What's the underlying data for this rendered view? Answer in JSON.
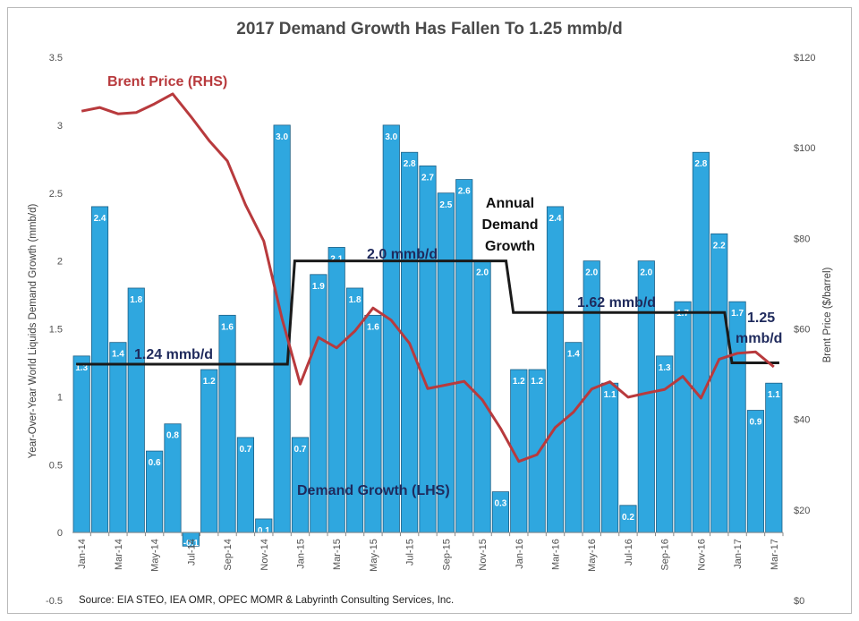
{
  "chart_data": {
    "type": "bar",
    "title": "2017 Demand Growth Has Fallen To 1.25 mmb/d",
    "ylabel": "Year-Over-Year World Liquids Demand Growth (mmb/d)",
    "y2label": "Brent Price ($/barrel)",
    "ylim": [
      -0.5,
      3.5
    ],
    "y2lim": [
      0,
      120
    ],
    "y_ticks": [
      "-0.5",
      "0",
      "0.5",
      "1",
      "1.5",
      "2",
      "2.5",
      "3",
      "3.5"
    ],
    "y2_ticks": [
      "$0",
      "$20",
      "$40",
      "$60",
      "$80",
      "$100",
      "$120"
    ],
    "categories": [
      "Jan-14",
      "Feb-14",
      "Mar-14",
      "Apr-14",
      "May-14",
      "Jun-14",
      "Jul-14",
      "Aug-14",
      "Sep-14",
      "Oct-14",
      "Nov-14",
      "Dec-14",
      "Jan-15",
      "Feb-15",
      "Mar-15",
      "Apr-15",
      "May-15",
      "Jun-15",
      "Jul-15",
      "Aug-15",
      "Sep-15",
      "Oct-15",
      "Nov-15",
      "Dec-15",
      "Jan-16",
      "Feb-16",
      "Mar-16",
      "Apr-16",
      "May-16",
      "Jun-16",
      "Jul-16",
      "Aug-16",
      "Sep-16",
      "Oct-16",
      "Nov-16",
      "Dec-16",
      "Jan-17",
      "Feb-17",
      "Mar-17"
    ],
    "x_tick_labels": [
      "Jan-14",
      "",
      "Mar-14",
      "",
      "May-14",
      "",
      "Jul-14",
      "",
      "Sep-14",
      "",
      "Nov-14",
      "",
      "Jan-15",
      "",
      "Mar-15",
      "",
      "May-15",
      "",
      "Jul-15",
      "",
      "Sep-15",
      "",
      "Nov-15",
      "",
      "Jan-16",
      "",
      "Mar-16",
      "",
      "May-16",
      "",
      "Jul-16",
      "",
      "Sep-16",
      "",
      "Nov-16",
      "",
      "Jan-17",
      "",
      "Mar-17"
    ],
    "series": [
      {
        "name": "Demand Growth (LHS)",
        "axis": "left",
        "type": "bar",
        "color": "#2fa7df",
        "values": [
          1.3,
          2.4,
          1.4,
          1.8,
          0.6,
          0.8,
          -0.1,
          1.2,
          1.6,
          0.7,
          0.1,
          3.0,
          0.7,
          1.9,
          2.1,
          1.8,
          1.6,
          3.0,
          2.8,
          2.7,
          2.5,
          2.6,
          2.0,
          0.3,
          1.2,
          1.2,
          2.4,
          1.4,
          2.0,
          1.1,
          0.2,
          2.0,
          1.3,
          1.7,
          2.8,
          2.2,
          1.7,
          0.9,
          1.1
        ],
        "labels": [
          "1.3",
          "2.4",
          "1.4",
          "1.8",
          "0.6",
          "0.8",
          "-0.1",
          "1.2",
          "1.6",
          "0.7",
          "0.1",
          "3.0",
          "0.7",
          "1.9",
          "2.1",
          "1.8",
          "1.6",
          "3.0",
          "2.8",
          "2.7",
          "2.5",
          "2.6",
          "2.0",
          "0.3",
          "1.2",
          "1.2",
          "2.4",
          "1.4",
          "2.0",
          "1.1",
          "0.2",
          "2.0",
          "1.3",
          "1.7",
          "2.8",
          "2.2",
          "1.7",
          "0.9",
          "1.1"
        ]
      },
      {
        "name": "Brent Price (RHS)",
        "axis": "right",
        "type": "line",
        "color": "#b83a3d",
        "values": [
          108.1,
          108.9,
          107.5,
          107.8,
          109.7,
          111.9,
          106.9,
          101.6,
          97.1,
          87.4,
          79.4,
          62.3,
          47.8,
          58.1,
          55.8,
          59.5,
          64.6,
          61.9,
          56.8,
          46.8,
          47.6,
          48.4,
          44.3,
          38.0,
          30.7,
          32.2,
          38.2,
          41.6,
          46.7,
          48.3,
          44.9,
          45.8,
          46.6,
          49.5,
          44.7,
          53.3,
          54.6,
          54.9,
          51.6
        ]
      },
      {
        "name": "Annual Demand Growth",
        "axis": "left",
        "type": "step",
        "color": "#1a1a1a",
        "segments": [
          {
            "from": 0,
            "to": 11,
            "value": 1.24,
            "label": "1.24 mmb/d"
          },
          {
            "from": 12,
            "to": 23,
            "value": 2.0,
            "label": "2.0 mmb/d"
          },
          {
            "from": 24,
            "to": 35,
            "value": 1.62,
            "label": "1.62 mmb/d"
          },
          {
            "from": 36,
            "to": 38,
            "value": 1.25,
            "label": "1.25 mmb/d"
          }
        ]
      }
    ],
    "annotations": {
      "brent": "Brent Price (RHS)",
      "demand": "Demand Growth (LHS)",
      "annual_line1": "Annual",
      "annual_line2": "Demand",
      "annual_line3": "Growth",
      "avg_2014": "1.24 mmb/d",
      "avg_2015": "2.0 mmb/d",
      "avg_2016": "1.62 mmb/d",
      "avg_2017_line1": "1.25",
      "avg_2017_line2": "mmb/d"
    },
    "source": "Source:  EIA STEO, IEA OMR, OPEC MOMR & Labyrinth Consulting Services, Inc.",
    "grid": false,
    "legend": "none"
  }
}
